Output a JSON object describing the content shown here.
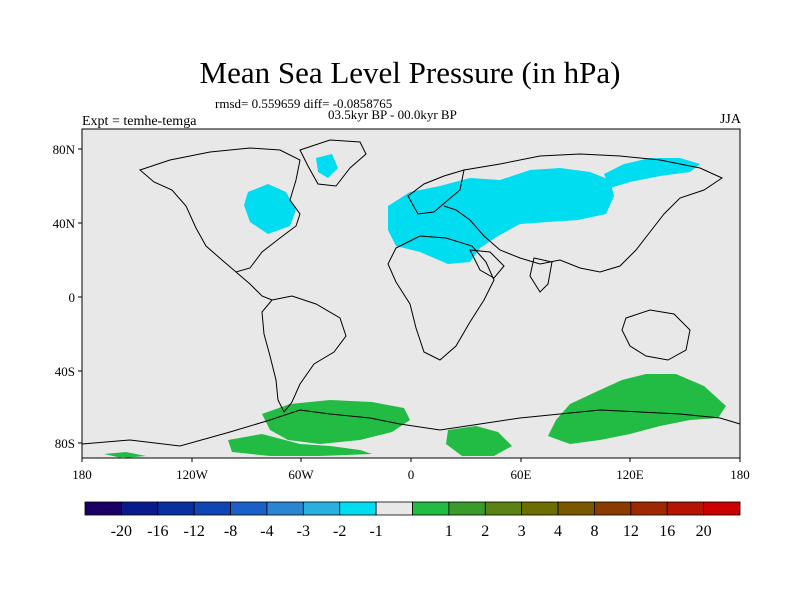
{
  "header": {
    "title": "Mean Sea Level Pressure (in hPa)",
    "stats": "rmsd= 0.559659 diff= -0.0858765",
    "period": "03.5kyr BP - 00.0kyr BP",
    "experiment": "Expt = temhe-temga",
    "season": "JJA"
  },
  "map": {
    "background_color": "#e8e8e8",
    "lat_ticks": [
      "80N",
      "40N",
      "0",
      "40S",
      "80S"
    ],
    "lon_ticks": [
      "180",
      "120W",
      "60W",
      "0",
      "60E",
      "120E",
      "180"
    ]
  },
  "colorbar": {
    "colors": [
      "#1a0064",
      "#0a1a8c",
      "#0a2fa0",
      "#1046b4",
      "#1a60c8",
      "#2a86d2",
      "#2ab0e0",
      "#00dcf0",
      "#e8e8e8",
      "#22bb44",
      "#3a9a2a",
      "#5a8214",
      "#6e6e00",
      "#7a5800",
      "#8a3c00",
      "#a02800",
      "#b41400",
      "#cc0000"
    ],
    "labels": [
      "-20",
      "-16",
      "-12",
      "-8",
      "-4",
      "-3",
      "-2",
      "-1",
      "1",
      "2",
      "3",
      "4",
      "8",
      "12",
      "16",
      "20"
    ]
  }
}
